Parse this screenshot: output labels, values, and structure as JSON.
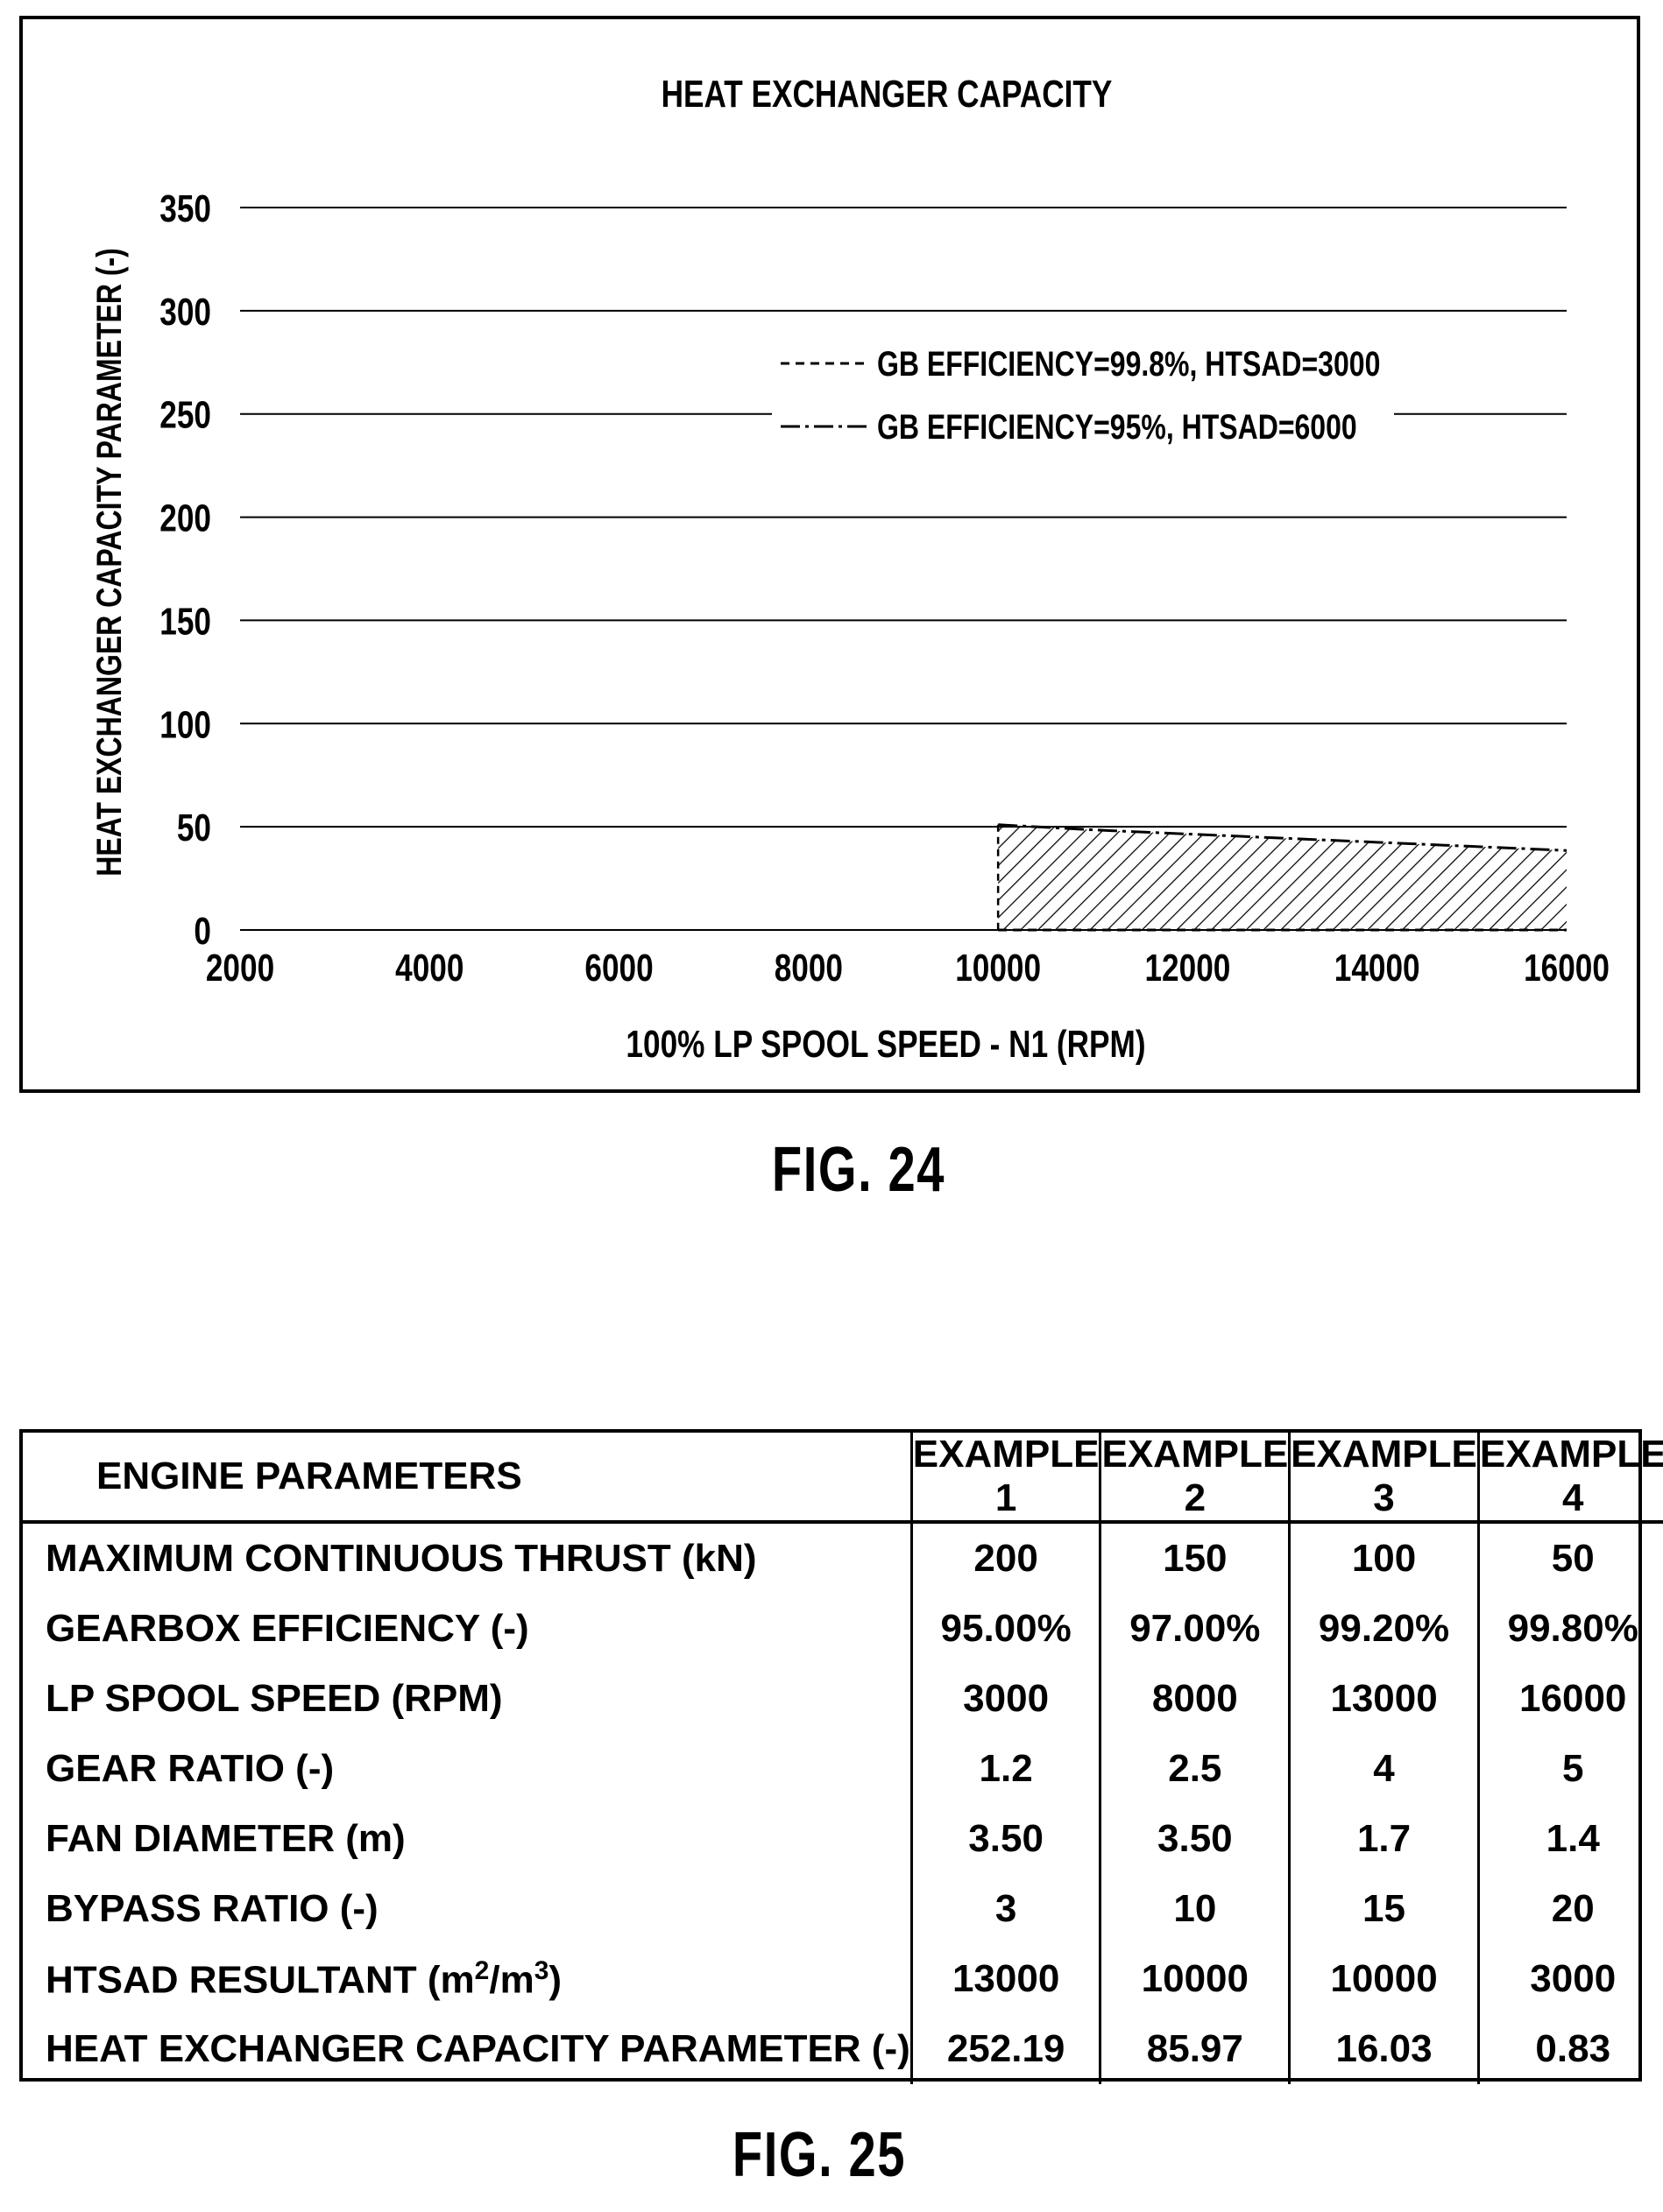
{
  "figures": {
    "fig24_label": "FIG. 24",
    "fig25_label": "FIG. 25"
  },
  "chart_data": {
    "type": "area",
    "title": "HEAT EXCHANGER CAPACITY",
    "xlabel": "100% LP SPOOL SPEED - N1 (RPM)",
    "ylabel": "HEAT EXCHANGER CAPACITY PARAMETER (-)",
    "xlim": [
      2000,
      16000
    ],
    "ylim": [
      0,
      350
    ],
    "x_ticks": [
      "2000",
      "4000",
      "6000",
      "8000",
      "10000",
      "12000",
      "14000",
      "16000"
    ],
    "y_ticks": [
      "0",
      "50",
      "100",
      "150",
      "200",
      "250",
      "300",
      "350"
    ],
    "grid": "horizontal",
    "legend_position": "upper-right",
    "series": [
      {
        "name": "GB EFFICIENCY=99.8%, HTSAD=3000",
        "style": "dashed",
        "x": [
          10000,
          16000
        ],
        "y": [
          0,
          0
        ]
      },
      {
        "name": "GB EFFICIENCY=95%, HTSAD=6000",
        "style": "dash-dot",
        "x": [
          10000,
          11000,
          12000,
          13000,
          14000,
          15000,
          16000
        ],
        "y": [
          51,
          48.5,
          46.5,
          44.5,
          42.5,
          40.5,
          38.5
        ]
      }
    ],
    "shaded_region": "hatched area between the two series from x=10000 to x=16000"
  },
  "table": {
    "headers": [
      "ENGINE PARAMETERS",
      "EXAMPLE 1",
      "EXAMPLE 2",
      "EXAMPLE 3",
      "EXAMPLE 4"
    ],
    "rows": [
      {
        "label": "MAXIMUM CONTINUOUS THRUST (kN)",
        "values": [
          "200",
          "150",
          "100",
          "50"
        ]
      },
      {
        "label": "GEARBOX EFFICIENCY (-)",
        "values": [
          "95.00%",
          "97.00%",
          "99.20%",
          "99.80%"
        ]
      },
      {
        "label": "LP SPOOL SPEED (RPM)",
        "values": [
          "3000",
          "8000",
          "13000",
          "16000"
        ]
      },
      {
        "label": "GEAR RATIO (-)",
        "values": [
          "1.2",
          "2.5",
          "4",
          "5"
        ]
      },
      {
        "label": "FAN DIAMETER (m)",
        "values": [
          "3.50",
          "3.50",
          "1.7",
          "1.4"
        ]
      },
      {
        "label": "BYPASS RATIO (-)",
        "values": [
          "3",
          "10",
          "15",
          "20"
        ]
      },
      {
        "label_parts": [
          "HTSAD RESULTANT (m",
          "2",
          "/m",
          "3",
          ")"
        ],
        "values": [
          "13000",
          "10000",
          "10000",
          "3000"
        ]
      },
      {
        "label": "HEAT EXCHANGER CAPACITY PARAMETER (-)",
        "values": [
          "252.19",
          "85.97",
          "16.03",
          "0.83"
        ]
      }
    ]
  }
}
